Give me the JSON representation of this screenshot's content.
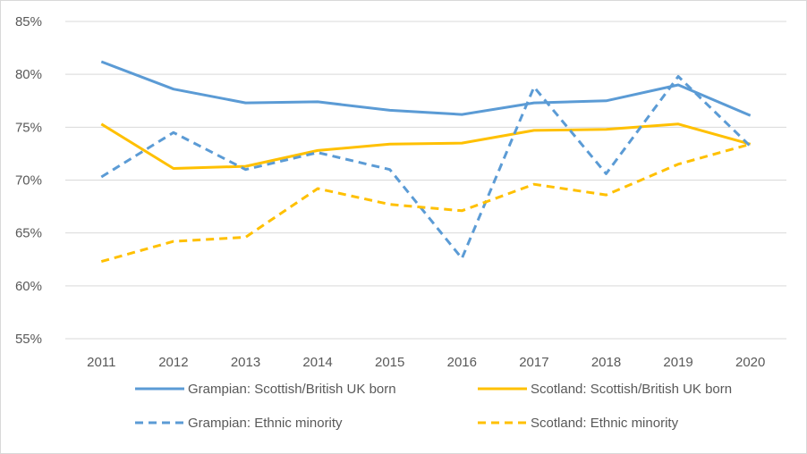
{
  "chart_data": {
    "type": "line",
    "title": "",
    "xlabel": "",
    "ylabel": "",
    "categories": [
      "2011",
      "2012",
      "2013",
      "2014",
      "2015",
      "2016",
      "2017",
      "2018",
      "2019",
      "2020"
    ],
    "ylim": [
      55,
      85
    ],
    "y_ticks": [
      "55%",
      "60%",
      "65%",
      "70%",
      "75%",
      "80%",
      "85%"
    ],
    "grid": true,
    "legend_position": "bottom",
    "series": [
      {
        "name": "Grampian: Scottish/British UK born",
        "color": "#5B9BD5",
        "dashed": false,
        "values": [
          81.2,
          78.6,
          77.3,
          77.4,
          76.6,
          76.2,
          77.3,
          77.5,
          79.0,
          76.1
        ]
      },
      {
        "name": "Scotland: Scottish/British UK born",
        "color": "#FFC000",
        "dashed": false,
        "values": [
          75.3,
          71.1,
          71.3,
          72.8,
          73.4,
          73.5,
          74.7,
          74.8,
          75.3,
          73.4
        ]
      },
      {
        "name": "Grampian: Ethnic minority",
        "color": "#5B9BD5",
        "dashed": true,
        "values": [
          70.3,
          74.5,
          71.0,
          72.6,
          71.0,
          62.6,
          78.8,
          70.6,
          79.8,
          73.2
        ]
      },
      {
        "name": "Scotland: Ethnic minority",
        "color": "#FFC000",
        "dashed": true,
        "values": [
          62.3,
          64.2,
          64.6,
          69.2,
          67.7,
          67.1,
          69.6,
          68.6,
          71.5,
          73.4
        ]
      }
    ]
  }
}
